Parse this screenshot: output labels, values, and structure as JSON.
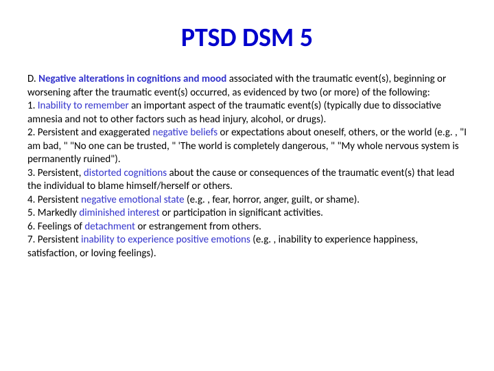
{
  "title": "PTSD DSM 5",
  "criterion": {
    "letter": "D.",
    "heading": "Negative alterations in cognitions and mood",
    "tail": " associated with the traumatic event(s), beginning or worsening after the traumatic event(s) occurred, as evidenced by two (or more) of the following:"
  },
  "items": {
    "i1a": "1. ",
    "i1k": "Inability to remember",
    "i1b": " an important aspect of the traumatic event(s) (typically due to dissociative amnesia and not to other factors such as head injury, alcohol, or drugs).",
    "i2a": "2. Persistent and exaggerated ",
    "i2k": "negative beliefs",
    "i2b": " or expectations about oneself, others, or the world (e.g. , \"I am bad, \" \"No one can be trusted, \" 'The world is completely dangerous, \" \"My whole nervous system is permanently ruined\").",
    "i3a": "3. Persistent, ",
    "i3k": "distorted cognitions",
    "i3b": " about the cause or consequences of the traumatic event(s) that lead the individual to blame himself/herself or others.",
    "i4a": "4. Persistent ",
    "i4k": "negative emotional state",
    "i4b": " (e.g. , fear, horror, anger, guilt, or shame).",
    "i5a": "5. Markedly ",
    "i5k": "diminished interest",
    "i5b": " or participation in significant activities.",
    "i6a": "6. Feelings of ",
    "i6k": "detachment",
    "i6b": " or estrangement from others.",
    "i7a": "7. Persistent ",
    "i7k": "inability to experience positive emotions",
    "i7b": " (e.g. , inability to experience happiness, satisfaction, or loving feelings)."
  },
  "colors": {
    "title": "#0000cc",
    "keyword": "#3333cc",
    "text": "#000000",
    "background": "#ffffff"
  }
}
